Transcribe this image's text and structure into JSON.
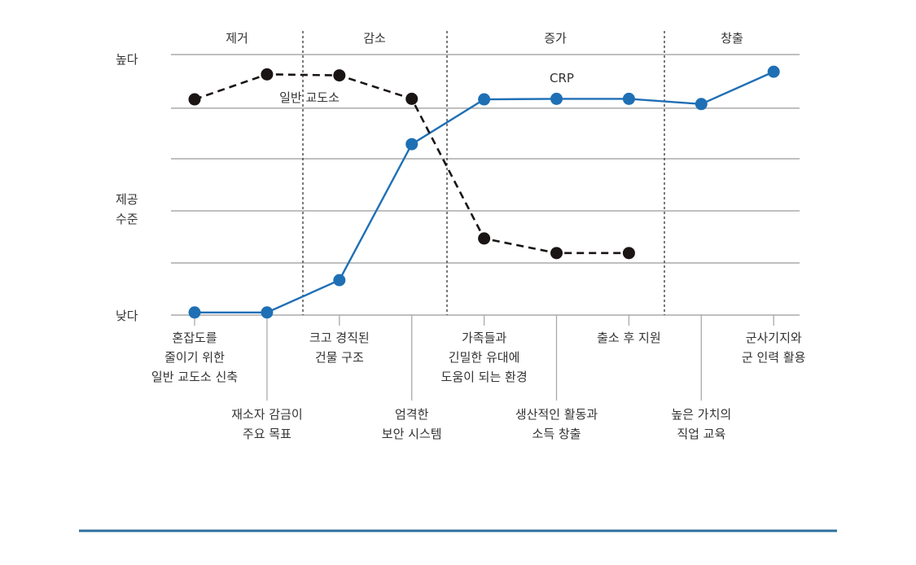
{
  "chart_data": {
    "type": "line",
    "ylabel": "제공 수준",
    "y_tick_labels": {
      "high": "높다",
      "low": "낮다"
    },
    "ylim": [
      0,
      5
    ],
    "phases": [
      "제거",
      "감소",
      "증가",
      "창출"
    ],
    "categories": [
      "혼잡도를\n줄이기 위한\n일반 교도소 신축",
      "재소자 감금이\n주요 목표",
      "크고 경직된\n건물 구조",
      "엄격한\n보안 시스템",
      "가족들과\n긴밀한 유대에\n도움이 되는 환경",
      "생산적인 활동과\n소득 창출",
      "출소 후 지원",
      "높은 가치의\n직업 교육",
      "군사기지와\n군 인력 활용"
    ],
    "series": [
      {
        "name": "CRP",
        "color": "#1f6fb5",
        "dashed": false,
        "values": [
          0.05,
          0.05,
          0.67,
          3.28,
          4.14,
          4.15,
          4.15,
          4.05,
          4.67
        ]
      },
      {
        "name": "일반 교도소",
        "color": "#1a1414",
        "dashed": true,
        "values": [
          4.14,
          4.62,
          4.6,
          4.15,
          1.47,
          1.19,
          1.19,
          null,
          null
        ]
      }
    ],
    "grid": true
  },
  "accent_color": "#2e6f9e"
}
